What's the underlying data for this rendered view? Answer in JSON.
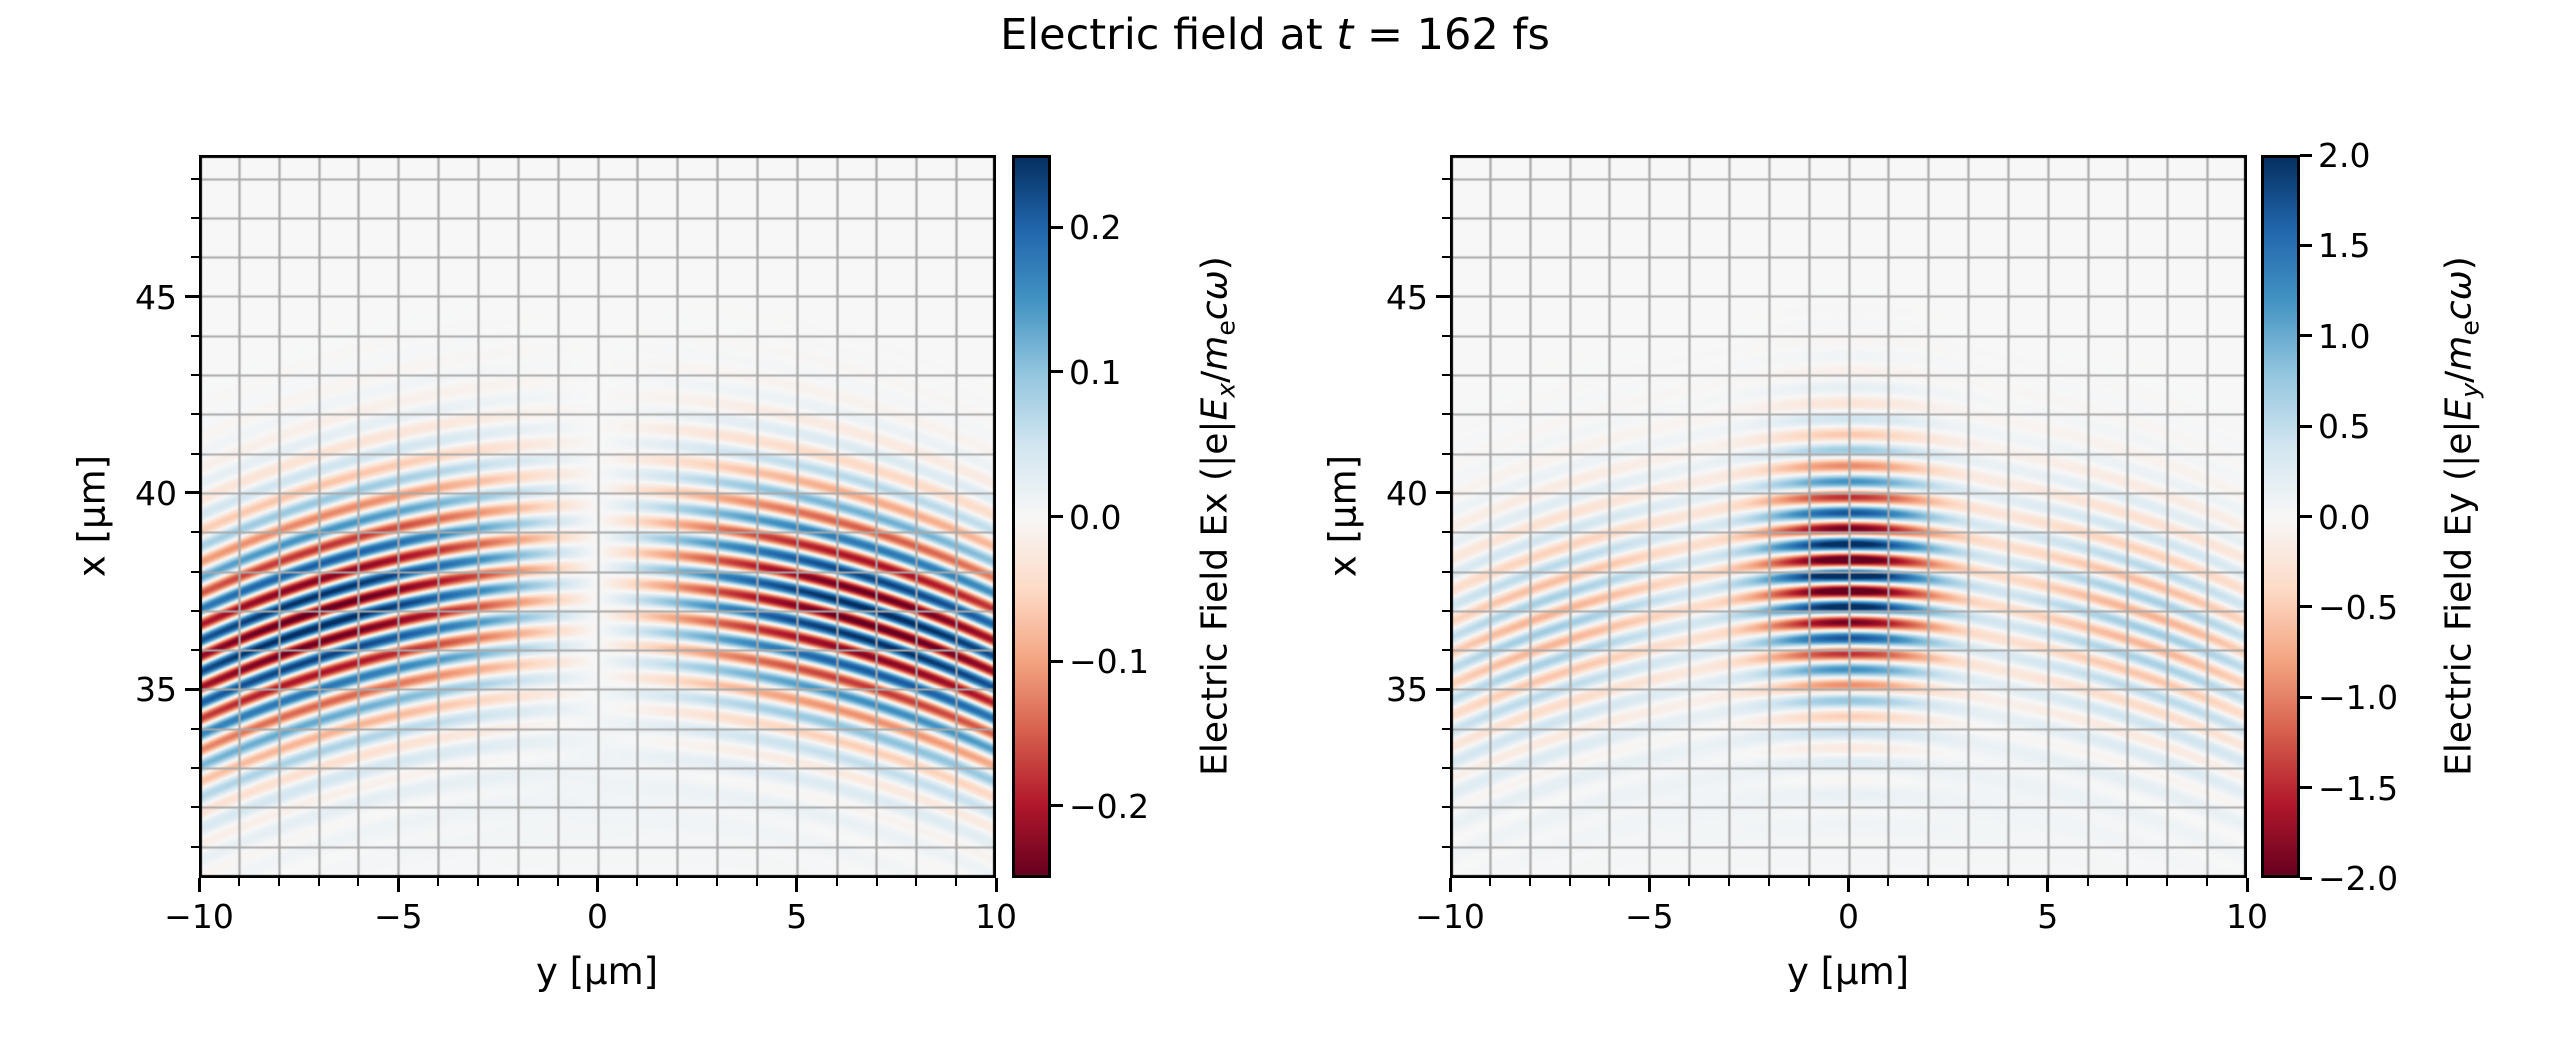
{
  "title": {
    "plain": "Electric field at t = 162 fs",
    "segments": [
      {
        "t": "Electric field at "
      },
      {
        "t": "t",
        "i": 1
      },
      {
        "t": " = 162 fs"
      }
    ]
  },
  "figure": {
    "background": "#ffffff",
    "plot_background": "#f7f7f7",
    "grid_color": "#a9a9a9",
    "spine_color": "#000000",
    "tick_color": "#000000",
    "colormap": "RdBu",
    "colormap_anchors": [
      "#67001f",
      "#b2182b",
      "#d6604d",
      "#f4a582",
      "#fddbc7",
      "#f7f7f7",
      "#d1e5f0",
      "#92c5de",
      "#4393c3",
      "#2166ac",
      "#053061"
    ]
  },
  "chart_data": {
    "type": "heatmap",
    "title": "Electric field at t = 162 fs",
    "time_fs": 162,
    "colormap": "RdBu",
    "grid": true,
    "subplots": [
      {
        "id": "Ex",
        "xlabel": "y [μm]",
        "ylabel": "x [μm]",
        "x_range": [
          -10,
          10
        ],
        "y_range": [
          30.2,
          48.6
        ],
        "xticks": [
          -10,
          -5,
          0,
          5,
          10
        ],
        "xtick_labels": [
          "−10",
          "−5",
          "0",
          "5",
          "10"
        ],
        "yticks": [
          35,
          40,
          45
        ],
        "ytick_labels": [
          "35",
          "40",
          "45"
        ],
        "minor_tick_step": 1,
        "grid_step": 1,
        "colorbar": {
          "range": [
            -0.25,
            0.25
          ],
          "ticks": [
            0.2,
            0.1,
            0.0,
            -0.1,
            -0.2
          ],
          "tick_labels": [
            "0.2",
            "0.1",
            "0.0",
            "−0.1",
            "−0.2"
          ],
          "label_plain": "Electric Field Ex (|e|Ex/mecω)",
          "label_segments": [
            {
              "t": "Electric Field Ex (|e|"
            },
            {
              "t": "E",
              "i": 1
            },
            {
              "t": "x",
              "i": 1,
              "sub": 1
            },
            {
              "t": "/"
            },
            {
              "t": "m",
              "i": 1
            },
            {
              "t": "e",
              "sub": 1
            },
            {
              "t": "c",
              "i": 1
            },
            {
              "t": "ω",
              "i": 1
            },
            {
              "t": ")"
            }
          ]
        },
        "field_model": {
          "component": "Ex",
          "wavelength_um": 0.8,
          "x_center_um": 37.9,
          "curvature_R_um": 22,
          "sigma_x_um": 2.1,
          "peak_amplitude": 0.26,
          "y_peak_um": 7.07,
          "y_width_um": 10,
          "base_wash_amplitude": 0.01,
          "base_wash_center_um": 32.8,
          "base_wash_width_um": 2.2,
          "carrier": "sine"
        }
      },
      {
        "id": "Ey",
        "xlabel": "y [μm]",
        "ylabel": "x [μm]",
        "x_range": [
          -10,
          10
        ],
        "y_range": [
          30.2,
          48.6
        ],
        "xticks": [
          -10,
          -5,
          0,
          5,
          10
        ],
        "xtick_labels": [
          "−10",
          "−5",
          "0",
          "5",
          "10"
        ],
        "yticks": [
          35,
          40,
          45
        ],
        "ytick_labels": [
          "35",
          "40",
          "45"
        ],
        "minor_tick_step": 1,
        "grid_step": 1,
        "colorbar": {
          "range": [
            -2.0,
            2.0
          ],
          "ticks": [
            2.0,
            1.5,
            1.0,
            0.5,
            0.0,
            -0.5,
            -1.0,
            -1.5,
            -2.0
          ],
          "tick_labels": [
            "2.0",
            "1.5",
            "1.0",
            "0.5",
            "0.0",
            "−0.5",
            "−1.0",
            "−1.5",
            "−2.0"
          ],
          "label_plain": "Electric Field Ey (|e|Ey/mecω)",
          "label_segments": [
            {
              "t": "Electric Field Ey (|e|"
            },
            {
              "t": "E",
              "i": 1
            },
            {
              "t": "y",
              "i": 1,
              "sub": 1
            },
            {
              "t": "/"
            },
            {
              "t": "m",
              "i": 1
            },
            {
              "t": "e",
              "sub": 1
            },
            {
              "t": "c",
              "i": 1
            },
            {
              "t": "ω",
              "i": 1
            },
            {
              "t": ")"
            }
          ]
        },
        "field_model": {
          "component": "Ey",
          "wavelength_um": 0.8,
          "x_center_um": 37.9,
          "curvature_R_um": 22,
          "sigma_x_um": 2.1,
          "core_amplitude": 2.3,
          "core_width_um": 2.2,
          "wing_amplitude": 0.7,
          "wing_center_um": 7.5,
          "wing_width_um": 4.2,
          "wing_phase_rad": 0.9,
          "base_wash_amplitude": 0.08,
          "base_wash_center_um": 32.8,
          "base_wash_width_um": 2.2,
          "carrier": "cosine"
        }
      }
    ]
  }
}
